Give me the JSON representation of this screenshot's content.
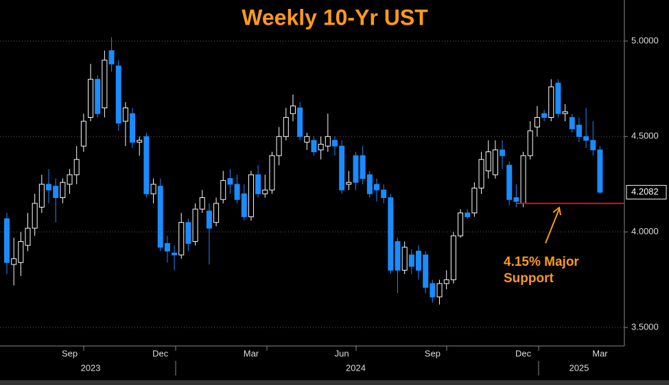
{
  "chart_data": {
    "type": "candlestick",
    "title": "Weekly 10-Yr UST",
    "categories": [
      null,
      null,
      null,
      null,
      null,
      null,
      null,
      null,
      null,
      "Sep",
      null,
      null,
      null,
      null,
      null,
      null,
      null,
      null,
      null,
      null,
      null,
      null,
      "Dec",
      null,
      null,
      null,
      null,
      null,
      null,
      null,
      null,
      null,
      null,
      null,
      null,
      "Mar",
      null,
      null,
      null,
      null,
      null,
      null,
      null,
      null,
      null,
      null,
      null,
      null,
      "Jun",
      null,
      null,
      null,
      null,
      null,
      null,
      null,
      null,
      null,
      null,
      null,
      null,
      "Sep",
      null,
      null,
      null,
      null,
      null,
      null,
      null,
      null,
      null,
      null,
      null,
      null,
      "Dec",
      null,
      null,
      null,
      null,
      null,
      null,
      null,
      null,
      null,
      null,
      "Mar"
    ],
    "years": [
      null,
      null,
      null,
      null,
      null,
      null,
      null,
      null,
      null,
      null,
      null,
      null,
      "2023",
      null,
      null,
      null,
      null,
      null,
      null,
      null,
      null,
      null,
      null,
      null,
      null,
      null,
      null,
      null,
      null,
      null,
      null,
      null,
      null,
      null,
      null,
      null,
      null,
      null,
      null,
      null,
      null,
      null,
      null,
      null,
      null,
      null,
      null,
      null,
      null,
      null,
      "2024",
      null,
      null,
      null,
      null,
      null,
      null,
      null,
      null,
      null,
      null,
      null,
      null,
      null,
      null,
      null,
      null,
      null,
      null,
      null,
      null,
      null,
      null,
      null,
      null,
      null,
      null,
      null,
      null,
      null,
      null,
      null,
      "2025",
      null,
      null,
      null
    ],
    "open": [
      4.07,
      3.83,
      3.84,
      3.93,
      4.02,
      4.13,
      4.25,
      4.24,
      4.18,
      4.25,
      4.3,
      4.45,
      4.6,
      4.8,
      4.65,
      4.95,
      4.87,
      4.58,
      4.62,
      4.47,
      4.5,
      4.2,
      4.24,
      3.94,
      3.89,
      3.88,
      4.05,
      3.95,
      4.12,
      4.11,
      4.05,
      4.17,
      4.28,
      4.25,
      4.2,
      4.08,
      4.3,
      4.2,
      4.22,
      4.4,
      4.5,
      4.62,
      4.65,
      4.47,
      4.48,
      4.43,
      4.45,
      4.48,
      4.45,
      4.25,
      4.4,
      4.4,
      4.3,
      4.25,
      4.22,
      4.18,
      3.95,
      3.8,
      3.88,
      3.9,
      3.88,
      3.73,
      3.66,
      3.73,
      3.75,
      3.98,
      4.1,
      4.1,
      4.23,
      4.32,
      4.3,
      4.43,
      4.35,
      4.18,
      4.15,
      4.4,
      4.55,
      4.62,
      4.6,
      4.78,
      4.62,
      4.6,
      4.56,
      4.5,
      4.48,
      4.43
    ],
    "high": [
      4.1,
      3.97,
      4.0,
      4.1,
      4.2,
      4.3,
      4.33,
      4.28,
      4.28,
      4.33,
      4.45,
      4.62,
      4.88,
      4.82,
      4.95,
      5.02,
      4.9,
      4.68,
      4.65,
      4.5,
      4.52,
      4.28,
      4.28,
      3.98,
      3.93,
      4.1,
      4.07,
      4.15,
      4.22,
      4.15,
      4.18,
      4.32,
      4.33,
      4.3,
      4.25,
      4.32,
      4.35,
      4.3,
      4.42,
      4.55,
      4.65,
      4.72,
      4.68,
      4.52,
      4.5,
      4.5,
      4.62,
      4.5,
      4.48,
      4.32,
      4.42,
      4.45,
      4.32,
      4.28,
      4.25,
      4.2,
      3.97,
      3.95,
      3.91,
      3.93,
      3.9,
      3.75,
      3.75,
      3.8,
      4.0,
      4.12,
      4.12,
      4.26,
      4.42,
      4.48,
      4.48,
      4.48,
      4.37,
      4.25,
      4.42,
      4.58,
      4.66,
      4.64,
      4.8,
      4.8,
      4.67,
      4.62,
      4.6,
      4.65,
      4.58,
      4.45
    ],
    "low": [
      3.78,
      3.72,
      3.77,
      3.9,
      3.98,
      4.1,
      4.15,
      4.05,
      4.15,
      4.2,
      4.25,
      4.42,
      4.58,
      4.6,
      4.6,
      4.84,
      4.53,
      4.45,
      4.44,
      4.4,
      4.18,
      4.15,
      3.9,
      3.84,
      3.8,
      3.86,
      3.9,
      3.93,
      4.1,
      3.83,
      4.03,
      4.15,
      4.2,
      4.15,
      4.06,
      4.06,
      4.18,
      4.18,
      4.2,
      4.35,
      4.48,
      4.58,
      4.48,
      4.43,
      4.4,
      4.38,
      4.42,
      4.4,
      4.2,
      4.22,
      4.22,
      4.25,
      4.18,
      4.16,
      4.15,
      3.78,
      3.68,
      3.78,
      3.78,
      3.75,
      3.68,
      3.63,
      3.62,
      3.7,
      3.73,
      3.97,
      4.07,
      4.08,
      4.2,
      4.28,
      4.28,
      4.33,
      4.14,
      4.13,
      4.13,
      4.38,
      4.5,
      4.58,
      4.58,
      4.6,
      4.58,
      4.52,
      4.47,
      4.44,
      4.4,
      4.2
    ],
    "close": [
      3.84,
      3.86,
      3.95,
      4.02,
      4.15,
      4.25,
      4.22,
      4.18,
      4.26,
      4.3,
      4.38,
      4.58,
      4.8,
      4.62,
      4.9,
      4.88,
      4.57,
      4.65,
      4.47,
      4.48,
      4.2,
      4.25,
      3.92,
      3.9,
      3.88,
      4.05,
      3.94,
      4.12,
      4.18,
      4.02,
      4.15,
      4.27,
      4.25,
      4.17,
      4.08,
      4.3,
      4.2,
      4.22,
      4.4,
      4.5,
      4.6,
      4.66,
      4.5,
      4.5,
      4.42,
      4.46,
      4.5,
      4.45,
      4.22,
      4.26,
      4.26,
      4.28,
      4.2,
      4.22,
      4.18,
      3.8,
      3.8,
      3.92,
      3.82,
      3.8,
      3.71,
      3.66,
      3.73,
      3.75,
      3.98,
      4.1,
      4.08,
      4.23,
      4.38,
      4.42,
      4.43,
      4.4,
      4.17,
      4.16,
      4.4,
      4.53,
      4.6,
      4.6,
      4.76,
      4.62,
      4.63,
      4.54,
      4.5,
      4.48,
      4.43,
      4.2082
    ],
    "up_color": "#ffffff",
    "down_color": "#1a8cff",
    "ylim": [
      3.4,
      5.2
    ],
    "yticks": [
      {
        "value": 3.5,
        "label": "3.5000"
      },
      {
        "value": 4.0,
        "label": "4.0000"
      },
      {
        "value": 4.5,
        "label": "4.5000"
      },
      {
        "value": 5.0,
        "label": "5.0000"
      }
    ],
    "grid": true,
    "support": 4.15,
    "support_color": "#e01010",
    "annotation": [
      "4.15% Major",
      "Support"
    ],
    "annotation_color": "#ff9a1a"
  }
}
